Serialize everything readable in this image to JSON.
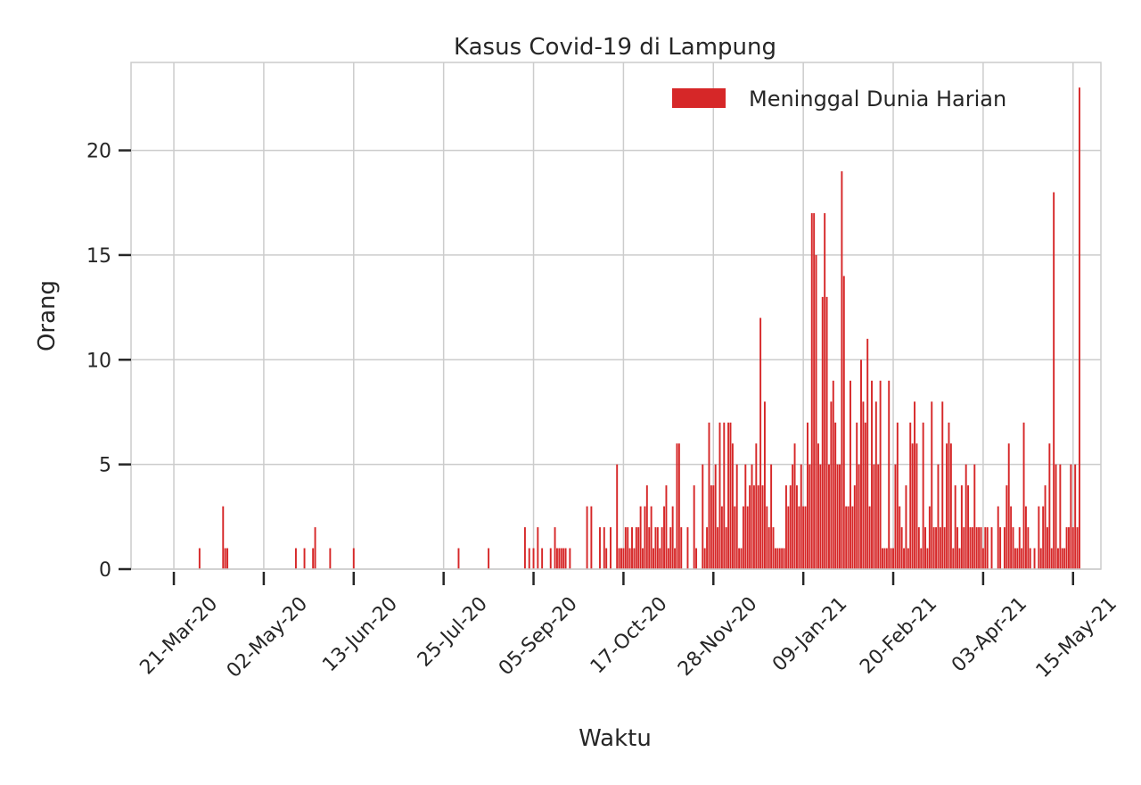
{
  "chart_data": {
    "type": "bar",
    "title": "Kasus Covid-19 di Lampung",
    "xlabel": "Waktu",
    "ylabel": "Orang",
    "ylim": [
      0,
      24.2
    ],
    "x_range": [
      "2020-03-01",
      "2021-05-28"
    ],
    "yticks": [
      0,
      5,
      10,
      15,
      20
    ],
    "xticks": [
      {
        "date": "2020-03-21",
        "label": "21-Mar-20"
      },
      {
        "date": "2020-05-02",
        "label": "02-May-20"
      },
      {
        "date": "2020-06-13",
        "label": "13-Jun-20"
      },
      {
        "date": "2020-07-25",
        "label": "25-Jul-20"
      },
      {
        "date": "2020-09-05",
        "label": "05-Sep-20"
      },
      {
        "date": "2020-10-17",
        "label": "17-Oct-20"
      },
      {
        "date": "2020-11-28",
        "label": "28-Nov-20"
      },
      {
        "date": "2021-01-09",
        "label": "09-Jan-21"
      },
      {
        "date": "2021-02-20",
        "label": "20-Feb-21"
      },
      {
        "date": "2021-04-03",
        "label": "03-Apr-21"
      },
      {
        "date": "2021-05-15",
        "label": "15-May-21"
      }
    ],
    "grid": true,
    "legend_position": "top-right",
    "series": [
      {
        "name": "Meninggal Dunia Harian",
        "color": "#d62728",
        "points": [
          [
            "2020-04-02",
            1
          ],
          [
            "2020-04-13",
            3
          ],
          [
            "2020-04-14",
            1
          ],
          [
            "2020-04-15",
            1
          ],
          [
            "2020-05-17",
            1
          ],
          [
            "2020-05-21",
            1
          ],
          [
            "2020-05-25",
            1
          ],
          [
            "2020-05-26",
            2
          ],
          [
            "2020-06-02",
            1
          ],
          [
            "2020-06-13",
            1
          ],
          [
            "2020-08-01",
            1
          ],
          [
            "2020-08-15",
            1
          ],
          [
            "2020-09-01",
            2
          ],
          [
            "2020-09-03",
            1
          ],
          [
            "2020-09-05",
            1
          ],
          [
            "2020-09-07",
            2
          ],
          [
            "2020-09-09",
            1
          ],
          [
            "2020-09-13",
            1
          ],
          [
            "2020-09-15",
            2
          ],
          [
            "2020-09-16",
            1
          ],
          [
            "2020-09-17",
            1
          ],
          [
            "2020-09-18",
            1
          ],
          [
            "2020-09-19",
            1
          ],
          [
            "2020-09-20",
            1
          ],
          [
            "2020-09-22",
            1
          ],
          [
            "2020-09-30",
            3
          ],
          [
            "2020-10-02",
            3
          ],
          [
            "2020-10-06",
            2
          ],
          [
            "2020-10-08",
            2
          ],
          [
            "2020-10-09",
            1
          ],
          [
            "2020-10-11",
            2
          ],
          [
            "2020-10-14",
            5
          ],
          [
            "2020-10-15",
            1
          ],
          [
            "2020-10-16",
            1
          ],
          [
            "2020-10-17",
            1
          ],
          [
            "2020-10-18",
            2
          ],
          [
            "2020-10-19",
            2
          ],
          [
            "2020-10-20",
            1
          ],
          [
            "2020-10-21",
            2
          ],
          [
            "2020-10-22",
            1
          ],
          [
            "2020-10-23",
            2
          ],
          [
            "2020-10-24",
            2
          ],
          [
            "2020-10-25",
            3
          ],
          [
            "2020-10-26",
            1
          ],
          [
            "2020-10-27",
            3
          ],
          [
            "2020-10-28",
            4
          ],
          [
            "2020-10-29",
            2
          ],
          [
            "2020-10-30",
            3
          ],
          [
            "2020-10-31",
            1
          ],
          [
            "2020-11-01",
            2
          ],
          [
            "2020-11-02",
            2
          ],
          [
            "2020-11-03",
            1
          ],
          [
            "2020-11-04",
            2
          ],
          [
            "2020-11-05",
            3
          ],
          [
            "2020-11-06",
            4
          ],
          [
            "2020-11-07",
            1
          ],
          [
            "2020-11-08",
            2
          ],
          [
            "2020-11-09",
            3
          ],
          [
            "2020-11-10",
            1
          ],
          [
            "2020-11-11",
            6
          ],
          [
            "2020-11-12",
            6
          ],
          [
            "2020-11-13",
            2
          ],
          [
            "2020-11-16",
            2
          ],
          [
            "2020-11-19",
            4
          ],
          [
            "2020-11-20",
            1
          ],
          [
            "2020-11-23",
            5
          ],
          [
            "2020-11-24",
            1
          ],
          [
            "2020-11-25",
            2
          ],
          [
            "2020-11-26",
            7
          ],
          [
            "2020-11-27",
            4
          ],
          [
            "2020-11-28",
            4
          ],
          [
            "2020-11-29",
            5
          ],
          [
            "2020-11-30",
            2
          ],
          [
            "2020-12-01",
            7
          ],
          [
            "2020-12-02",
            3
          ],
          [
            "2020-12-03",
            7
          ],
          [
            "2020-12-04",
            2
          ],
          [
            "2020-12-05",
            7
          ],
          [
            "2020-12-06",
            7
          ],
          [
            "2020-12-07",
            6
          ],
          [
            "2020-12-08",
            3
          ],
          [
            "2020-12-09",
            5
          ],
          [
            "2020-12-10",
            1
          ],
          [
            "2020-12-11",
            1
          ],
          [
            "2020-12-12",
            3
          ],
          [
            "2020-12-13",
            5
          ],
          [
            "2020-12-14",
            3
          ],
          [
            "2020-12-15",
            4
          ],
          [
            "2020-12-16",
            5
          ],
          [
            "2020-12-17",
            4
          ],
          [
            "2020-12-18",
            6
          ],
          [
            "2020-12-19",
            4
          ],
          [
            "2020-12-20",
            12
          ],
          [
            "2020-12-21",
            4
          ],
          [
            "2020-12-22",
            8
          ],
          [
            "2020-12-23",
            3
          ],
          [
            "2020-12-24",
            2
          ],
          [
            "2020-12-25",
            5
          ],
          [
            "2020-12-26",
            2
          ],
          [
            "2020-12-27",
            1
          ],
          [
            "2020-12-28",
            1
          ],
          [
            "2020-12-29",
            1
          ],
          [
            "2020-12-30",
            1
          ],
          [
            "2020-12-31",
            1
          ],
          [
            "2021-01-01",
            4
          ],
          [
            "2021-01-02",
            3
          ],
          [
            "2021-01-03",
            4
          ],
          [
            "2021-01-04",
            5
          ],
          [
            "2021-01-05",
            6
          ],
          [
            "2021-01-06",
            4
          ],
          [
            "2021-01-07",
            3
          ],
          [
            "2021-01-08",
            5
          ],
          [
            "2021-01-09",
            3
          ],
          [
            "2021-01-10",
            3
          ],
          [
            "2021-01-11",
            7
          ],
          [
            "2021-01-12",
            5
          ],
          [
            "2021-01-13",
            17
          ],
          [
            "2021-01-14",
            17
          ],
          [
            "2021-01-15",
            15
          ],
          [
            "2021-01-16",
            6
          ],
          [
            "2021-01-17",
            5
          ],
          [
            "2021-01-18",
            13
          ],
          [
            "2021-01-19",
            17
          ],
          [
            "2021-01-20",
            13
          ],
          [
            "2021-01-21",
            5
          ],
          [
            "2021-01-22",
            8
          ],
          [
            "2021-01-23",
            9
          ],
          [
            "2021-01-24",
            7
          ],
          [
            "2021-01-25",
            5
          ],
          [
            "2021-01-26",
            5
          ],
          [
            "2021-01-27",
            19
          ],
          [
            "2021-01-28",
            14
          ],
          [
            "2021-01-29",
            3
          ],
          [
            "2021-01-30",
            3
          ],
          [
            "2021-01-31",
            9
          ],
          [
            "2021-02-01",
            3
          ],
          [
            "2021-02-02",
            4
          ],
          [
            "2021-02-03",
            7
          ],
          [
            "2021-02-04",
            5
          ],
          [
            "2021-02-05",
            10
          ],
          [
            "2021-02-06",
            8
          ],
          [
            "2021-02-07",
            7
          ],
          [
            "2021-02-08",
            11
          ],
          [
            "2021-02-09",
            3
          ],
          [
            "2021-02-10",
            9
          ],
          [
            "2021-02-11",
            5
          ],
          [
            "2021-02-12",
            8
          ],
          [
            "2021-02-13",
            5
          ],
          [
            "2021-02-14",
            9
          ],
          [
            "2021-02-15",
            1
          ],
          [
            "2021-02-16",
            1
          ],
          [
            "2021-02-17",
            1
          ],
          [
            "2021-02-18",
            9
          ],
          [
            "2021-02-19",
            1
          ],
          [
            "2021-02-20",
            1
          ],
          [
            "2021-02-21",
            5
          ],
          [
            "2021-02-22",
            7
          ],
          [
            "2021-02-23",
            3
          ],
          [
            "2021-02-24",
            2
          ],
          [
            "2021-02-25",
            1
          ],
          [
            "2021-02-26",
            4
          ],
          [
            "2021-02-27",
            1
          ],
          [
            "2021-02-28",
            7
          ],
          [
            "2021-03-01",
            6
          ],
          [
            "2021-03-02",
            8
          ],
          [
            "2021-03-03",
            6
          ],
          [
            "2021-03-04",
            2
          ],
          [
            "2021-03-05",
            1
          ],
          [
            "2021-03-06",
            7
          ],
          [
            "2021-03-07",
            2
          ],
          [
            "2021-03-08",
            1
          ],
          [
            "2021-03-09",
            3
          ],
          [
            "2021-03-10",
            8
          ],
          [
            "2021-03-11",
            2
          ],
          [
            "2021-03-12",
            2
          ],
          [
            "2021-03-13",
            5
          ],
          [
            "2021-03-14",
            2
          ],
          [
            "2021-03-15",
            8
          ],
          [
            "2021-03-16",
            2
          ],
          [
            "2021-03-17",
            6
          ],
          [
            "2021-03-18",
            7
          ],
          [
            "2021-03-19",
            6
          ],
          [
            "2021-03-20",
            1
          ],
          [
            "2021-03-21",
            4
          ],
          [
            "2021-03-22",
            2
          ],
          [
            "2021-03-23",
            1
          ],
          [
            "2021-03-24",
            4
          ],
          [
            "2021-03-25",
            2
          ],
          [
            "2021-03-26",
            5
          ],
          [
            "2021-03-27",
            4
          ],
          [
            "2021-03-28",
            2
          ],
          [
            "2021-03-29",
            2
          ],
          [
            "2021-03-30",
            5
          ],
          [
            "2021-03-31",
            2
          ],
          [
            "2021-04-01",
            2
          ],
          [
            "2021-04-02",
            2
          ],
          [
            "2021-04-03",
            1
          ],
          [
            "2021-04-04",
            2
          ],
          [
            "2021-04-05",
            2
          ],
          [
            "2021-04-07",
            2
          ],
          [
            "2021-04-10",
            3
          ],
          [
            "2021-04-11",
            2
          ],
          [
            "2021-04-13",
            2
          ],
          [
            "2021-04-14",
            4
          ],
          [
            "2021-04-15",
            6
          ],
          [
            "2021-04-16",
            3
          ],
          [
            "2021-04-17",
            2
          ],
          [
            "2021-04-18",
            1
          ],
          [
            "2021-04-19",
            1
          ],
          [
            "2021-04-20",
            2
          ],
          [
            "2021-04-21",
            1
          ],
          [
            "2021-04-22",
            7
          ],
          [
            "2021-04-23",
            3
          ],
          [
            "2021-04-24",
            2
          ],
          [
            "2021-04-25",
            1
          ],
          [
            "2021-04-27",
            1
          ],
          [
            "2021-04-29",
            3
          ],
          [
            "2021-04-30",
            1
          ],
          [
            "2021-05-01",
            3
          ],
          [
            "2021-05-02",
            4
          ],
          [
            "2021-05-03",
            2
          ],
          [
            "2021-05-04",
            6
          ],
          [
            "2021-05-05",
            1
          ],
          [
            "2021-05-06",
            18
          ],
          [
            "2021-05-07",
            5
          ],
          [
            "2021-05-08",
            1
          ],
          [
            "2021-05-09",
            5
          ],
          [
            "2021-05-10",
            1
          ],
          [
            "2021-05-11",
            1
          ],
          [
            "2021-05-12",
            2
          ],
          [
            "2021-05-13",
            2
          ],
          [
            "2021-05-14",
            5
          ],
          [
            "2021-05-15",
            2
          ],
          [
            "2021-05-16",
            5
          ],
          [
            "2021-05-17",
            2
          ],
          [
            "2021-05-18",
            23
          ]
        ]
      }
    ]
  }
}
